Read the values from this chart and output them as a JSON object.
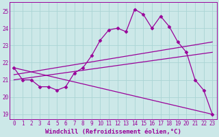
{
  "bg_color": "#cce8e8",
  "grid_color": "#aad4d4",
  "line_color": "#990099",
  "marker": "D",
  "markersize": 2.5,
  "linewidth": 0.9,
  "xlabel": "Windchill (Refroidissement éolien,°C)",
  "xlabel_fontsize": 6.5,
  "tick_fontsize": 5.5,
  "ylim": [
    18.7,
    25.5
  ],
  "xlim": [
    -0.5,
    23.5
  ],
  "yticks": [
    19,
    20,
    21,
    22,
    23,
    24,
    25
  ],
  "xticks": [
    0,
    1,
    2,
    3,
    4,
    5,
    6,
    7,
    8,
    9,
    10,
    11,
    12,
    13,
    14,
    15,
    16,
    17,
    18,
    19,
    20,
    21,
    22,
    23
  ],
  "series": [
    {
      "x": [
        0,
        1,
        2,
        3,
        4,
        5,
        6,
        7,
        8,
        9,
        10,
        11,
        12,
        13,
        14,
        15,
        16,
        17,
        18,
        19,
        20,
        21,
        22,
        23
      ],
      "y": [
        21.7,
        21.0,
        21.0,
        20.6,
        20.6,
        20.4,
        20.6,
        21.4,
        21.7,
        22.4,
        23.3,
        23.9,
        24.0,
        23.8,
        25.1,
        24.8,
        24.0,
        24.7,
        24.1,
        23.2,
        22.6,
        21.0,
        20.4,
        19.0
      ],
      "has_markers": true
    },
    {
      "x": [
        0,
        23
      ],
      "y": [
        21.3,
        23.2
      ],
      "has_markers": false
    },
    {
      "x": [
        0,
        23
      ],
      "y": [
        21.0,
        22.6
      ],
      "has_markers": false
    },
    {
      "x": [
        0,
        23
      ],
      "y": [
        21.7,
        19.0
      ],
      "has_markers": false
    }
  ]
}
